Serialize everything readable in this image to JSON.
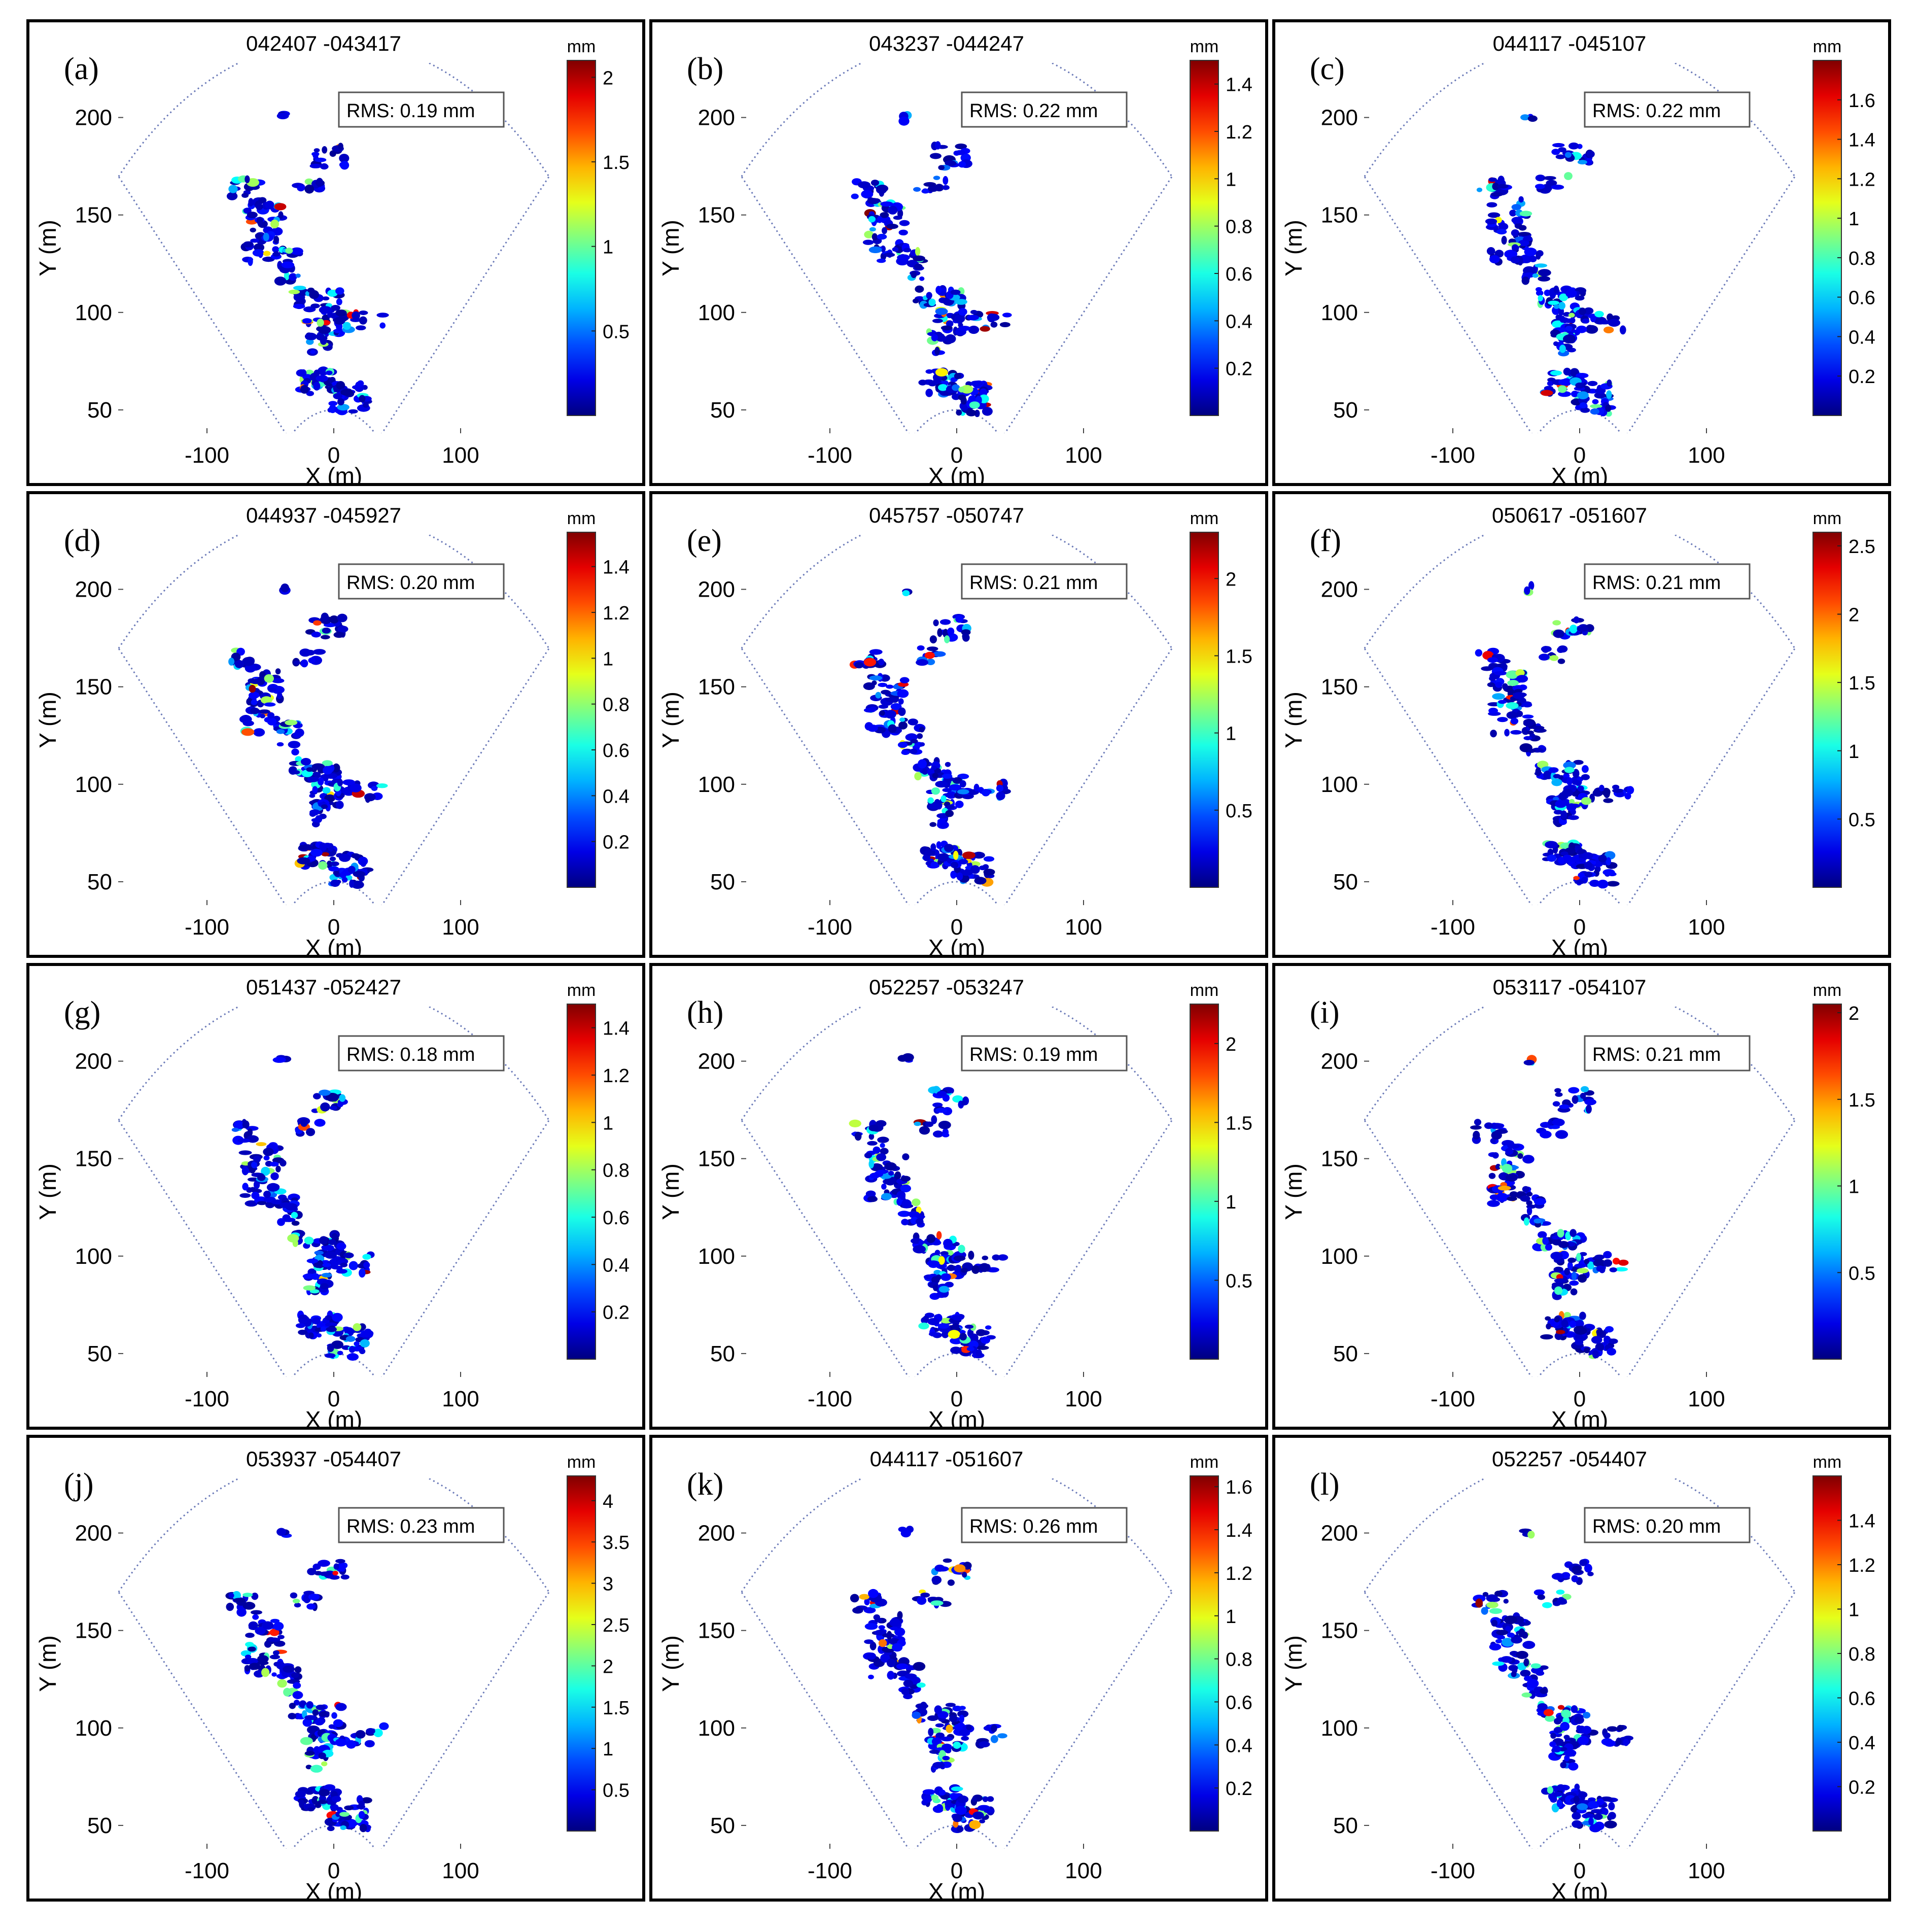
{
  "colors": {
    "sector": "#6b7ab8",
    "frame": "#000000",
    "text": "#000000",
    "bg": "#ffffff"
  },
  "colormap": "jet",
  "chart_data": [
    {
      "type": "scatter",
      "label": "(a)",
      "title": "042407 -043417",
      "rms": "RMS: 0.19 mm",
      "cmax": 2.1,
      "cticks": [
        "0.5",
        "1",
        "1.5",
        "2"
      ],
      "ctick_values": [
        0.5,
        1,
        1.5,
        2
      ]
    },
    {
      "type": "scatter",
      "label": "(b)",
      "title": "043237 -044247",
      "rms": "RMS: 0.22 mm",
      "cmax": 1.5,
      "cticks": [
        "0.2",
        "0.4",
        "0.6",
        "0.8",
        "1",
        "1.2",
        "1.4"
      ],
      "ctick_values": [
        0.2,
        0.4,
        0.6,
        0.8,
        1,
        1.2,
        1.4
      ]
    },
    {
      "type": "scatter",
      "label": "(c)",
      "title": "044117 -045107",
      "rms": "RMS: 0.22 mm",
      "cmax": 1.8,
      "cticks": [
        "0.2",
        "0.4",
        "0.6",
        "0.8",
        "1",
        "1.2",
        "1.4",
        "1.6"
      ],
      "ctick_values": [
        0.2,
        0.4,
        0.6,
        0.8,
        1,
        1.2,
        1.4,
        1.6
      ]
    },
    {
      "type": "scatter",
      "label": "(d)",
      "title": "044937 -045927",
      "rms": "RMS: 0.20 mm",
      "cmax": 1.55,
      "cticks": [
        "0.2",
        "0.4",
        "0.6",
        "0.8",
        "1",
        "1.2",
        "1.4"
      ],
      "ctick_values": [
        0.2,
        0.4,
        0.6,
        0.8,
        1,
        1.2,
        1.4
      ]
    },
    {
      "type": "scatter",
      "label": "(e)",
      "title": "045757 -050747",
      "rms": "RMS: 0.21 mm",
      "cmax": 2.3,
      "cticks": [
        "0.5",
        "1",
        "1.5",
        "2"
      ],
      "ctick_values": [
        0.5,
        1,
        1.5,
        2
      ]
    },
    {
      "type": "scatter",
      "label": "(f)",
      "title": "050617 -051607",
      "rms": "RMS: 0.21 mm",
      "cmax": 2.6,
      "cticks": [
        "0.5",
        "1",
        "1.5",
        "2",
        "2.5"
      ],
      "ctick_values": [
        0.5,
        1,
        1.5,
        2,
        2.5
      ]
    },
    {
      "type": "scatter",
      "label": "(g)",
      "title": "051437 -052427",
      "rms": "RMS: 0.18 mm",
      "cmax": 1.5,
      "cticks": [
        "0.2",
        "0.4",
        "0.6",
        "0.8",
        "1",
        "1.2",
        "1.4"
      ],
      "ctick_values": [
        0.2,
        0.4,
        0.6,
        0.8,
        1,
        1.2,
        1.4
      ]
    },
    {
      "type": "scatter",
      "label": "(h)",
      "title": "052257 -053247",
      "rms": "RMS: 0.19 mm",
      "cmax": 2.25,
      "cticks": [
        "0.5",
        "1",
        "1.5",
        "2"
      ],
      "ctick_values": [
        0.5,
        1,
        1.5,
        2
      ]
    },
    {
      "type": "scatter",
      "label": "(i)",
      "title": "053117 -054107",
      "rms": "RMS: 0.21 mm",
      "cmax": 2.05,
      "cticks": [
        "0.5",
        "1",
        "1.5",
        "2"
      ],
      "ctick_values": [
        0.5,
        1,
        1.5,
        2
      ]
    },
    {
      "type": "scatter",
      "label": "(j)",
      "title": "053937 -054407",
      "rms": "RMS: 0.23 mm",
      "cmax": 4.3,
      "cticks": [
        "0.5",
        "1",
        "1.5",
        "2",
        "2.5",
        "3",
        "3.5",
        "4"
      ],
      "ctick_values": [
        0.5,
        1,
        1.5,
        2,
        2.5,
        3,
        3.5,
        4
      ]
    },
    {
      "type": "scatter",
      "label": "(k)",
      "title": "044117 -051607",
      "rms": "RMS: 0.26 mm",
      "cmax": 1.65,
      "cticks": [
        "0.2",
        "0.4",
        "0.6",
        "0.8",
        "1",
        "1.2",
        "1.4",
        "1.6"
      ],
      "ctick_values": [
        0.2,
        0.4,
        0.6,
        0.8,
        1,
        1.2,
        1.4,
        1.6
      ]
    },
    {
      "type": "scatter",
      "label": "(l)",
      "title": "052257 -054407",
      "rms": "RMS: 0.20 mm",
      "cmax": 1.6,
      "cticks": [
        "0.2",
        "0.4",
        "0.6",
        "0.8",
        "1",
        "1.2",
        "1.4"
      ],
      "ctick_values": [
        0.2,
        0.4,
        0.6,
        0.8,
        1,
        1.2,
        1.4
      ]
    }
  ],
  "axes": {
    "xlabel": "X (m)",
    "ylabel": "Y (m)",
    "clabel": "mm",
    "xlim": [
      -170,
      170
    ],
    "ylim": [
      38,
      228
    ],
    "xticks": [
      -100,
      0,
      100
    ],
    "xtick_labels": [
      "-100",
      "0",
      "100"
    ],
    "yticks": [
      50,
      100,
      150,
      200
    ],
    "ytick_labels": [
      "50",
      "100",
      "150",
      "200"
    ],
    "sector": {
      "origin_y": 0,
      "inner_radius": 50,
      "outer_radius": 240,
      "half_angle_deg": 45
    }
  },
  "clusters": [
    {
      "x": -40,
      "y": 200,
      "w": 3,
      "h": 2,
      "n": 3
    },
    {
      "x": -5,
      "y": 180,
      "w": 14,
      "h": 6,
      "n": 18
    },
    {
      "x": -70,
      "y": 164,
      "w": 12,
      "h": 5,
      "n": 14
    },
    {
      "x": -20,
      "y": 166,
      "w": 12,
      "h": 4,
      "n": 10
    },
    {
      "x": -55,
      "y": 142,
      "w": 15,
      "h": 16,
      "n": 55
    },
    {
      "x": -35,
      "y": 124,
      "w": 8,
      "h": 8,
      "n": 18
    },
    {
      "x": -28,
      "y": 108,
      "w": 5,
      "h": 5,
      "n": 8
    },
    {
      "x": -8,
      "y": 100,
      "w": 14,
      "h": 12,
      "n": 45
    },
    {
      "x": 20,
      "y": 96,
      "w": 20,
      "h": 5,
      "n": 18
    },
    {
      "x": -12,
      "y": 85,
      "w": 8,
      "h": 6,
      "n": 14
    },
    {
      "x": -12,
      "y": 64,
      "w": 15,
      "h": 6,
      "n": 35
    },
    {
      "x": 12,
      "y": 56,
      "w": 15,
      "h": 8,
      "n": 40
    }
  ]
}
